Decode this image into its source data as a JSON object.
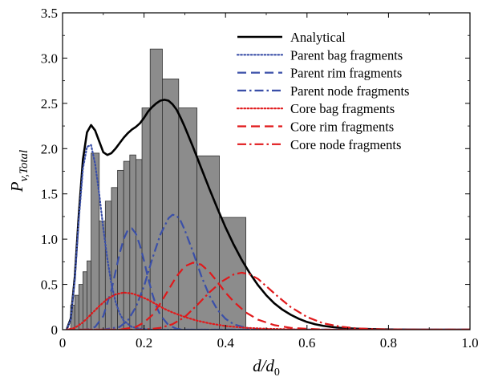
{
  "chart_data": {
    "type": "line",
    "xlabel": "d/d0",
    "ylabel": "Pv,Total",
    "xlim": [
      0,
      1.0
    ],
    "ylim": [
      0,
      3.5
    ],
    "x_ticks": [
      "0",
      "0.2",
      "0.4",
      "0.6",
      "0.8",
      "1.0"
    ],
    "y_ticks": [
      "0",
      "0.5",
      "1.0",
      "1.5",
      "2.0",
      "2.5",
      "3.0",
      "3.5"
    ],
    "legend_position": "top-right",
    "histogram": {
      "color": "#8c8c8c",
      "bins": [
        {
          "x0": 0.02,
          "x1": 0.03,
          "value": 0.27
        },
        {
          "x0": 0.03,
          "x1": 0.04,
          "value": 0.38
        },
        {
          "x0": 0.04,
          "x1": 0.05,
          "value": 0.5
        },
        {
          "x0": 0.05,
          "x1": 0.06,
          "value": 0.64
        },
        {
          "x0": 0.06,
          "x1": 0.07,
          "value": 0.76
        },
        {
          "x0": 0.07,
          "x1": 0.09,
          "value": 1.95
        },
        {
          "x0": 0.09,
          "x1": 0.105,
          "value": 1.2
        },
        {
          "x0": 0.105,
          "x1": 0.12,
          "value": 1.42
        },
        {
          "x0": 0.12,
          "x1": 0.135,
          "value": 1.57
        },
        {
          "x0": 0.135,
          "x1": 0.15,
          "value": 1.76
        },
        {
          "x0": 0.15,
          "x1": 0.165,
          "value": 1.86
        },
        {
          "x0": 0.165,
          "x1": 0.18,
          "value": 1.93
        },
        {
          "x0": 0.18,
          "x1": 0.195,
          "value": 1.88
        },
        {
          "x0": 0.195,
          "x1": 0.215,
          "value": 2.45
        },
        {
          "x0": 0.215,
          "x1": 0.245,
          "value": 3.1
        },
        {
          "x0": 0.245,
          "x1": 0.285,
          "value": 2.77
        },
        {
          "x0": 0.285,
          "x1": 0.33,
          "value": 2.45
        },
        {
          "x0": 0.33,
          "x1": 0.385,
          "value": 1.92
        },
        {
          "x0": 0.385,
          "x1": 0.45,
          "value": 1.24
        }
      ]
    },
    "series": [
      {
        "name": "Analytical",
        "color": "#000000",
        "style": "solid",
        "width": 2.6,
        "x": [
          0.01,
          0.02,
          0.03,
          0.04,
          0.05,
          0.06,
          0.07,
          0.08,
          0.09,
          0.1,
          0.11,
          0.12,
          0.13,
          0.14,
          0.15,
          0.16,
          0.17,
          0.18,
          0.19,
          0.2,
          0.21,
          0.22,
          0.23,
          0.24,
          0.25,
          0.26,
          0.27,
          0.28,
          0.29,
          0.3,
          0.32,
          0.34,
          0.36,
          0.38,
          0.4,
          0.42,
          0.44,
          0.46,
          0.48,
          0.5,
          0.52,
          0.54,
          0.56,
          0.58,
          0.6,
          0.62,
          0.64,
          0.66,
          0.68,
          0.7,
          0.72,
          0.74,
          0.76,
          0.78,
          0.8,
          0.85,
          0.9,
          0.95,
          1.0
        ],
        "y": [
          0.0,
          0.12,
          0.58,
          1.28,
          1.88,
          2.18,
          2.26,
          2.2,
          2.08,
          1.96,
          1.93,
          1.95,
          2.0,
          2.06,
          2.12,
          2.17,
          2.21,
          2.24,
          2.28,
          2.34,
          2.41,
          2.46,
          2.5,
          2.53,
          2.54,
          2.53,
          2.49,
          2.43,
          2.34,
          2.24,
          2.02,
          1.79,
          1.56,
          1.34,
          1.13,
          0.94,
          0.77,
          0.62,
          0.49,
          0.38,
          0.29,
          0.22,
          0.165,
          0.12,
          0.085,
          0.06,
          0.042,
          0.03,
          0.021,
          0.015,
          0.011,
          0.008,
          0.006,
          0.004,
          0.003,
          0.001,
          0.0,
          0.0,
          0.0
        ]
      },
      {
        "name": "Parent bag fragments",
        "color": "#3a4fa8",
        "style": "dotted",
        "width": 2.2,
        "x": [
          0.01,
          0.02,
          0.03,
          0.04,
          0.05,
          0.06,
          0.07,
          0.08,
          0.09,
          0.1,
          0.11,
          0.12,
          0.13,
          0.14,
          0.15,
          0.17,
          0.19,
          0.22,
          0.26,
          0.3,
          0.35,
          1.0
        ],
        "y": [
          0.0,
          0.11,
          0.55,
          1.22,
          1.78,
          2.02,
          2.04,
          1.83,
          1.5,
          1.12,
          0.78,
          0.5,
          0.31,
          0.18,
          0.1,
          0.03,
          0.01,
          0.0,
          0.0,
          0.0,
          0.0,
          0.0
        ]
      },
      {
        "name": "Parent rim fragments",
        "color": "#3a4fa8",
        "style": "dashed",
        "width": 2.2,
        "x": [
          0.01,
          0.06,
          0.08,
          0.1,
          0.12,
          0.13,
          0.14,
          0.15,
          0.16,
          0.17,
          0.18,
          0.19,
          0.2,
          0.21,
          0.22,
          0.23,
          0.24,
          0.26,
          0.28,
          0.3,
          1.0
        ],
        "y": [
          0.0,
          0.0,
          0.03,
          0.15,
          0.44,
          0.64,
          0.84,
          1.0,
          1.1,
          1.12,
          1.06,
          0.93,
          0.76,
          0.57,
          0.4,
          0.26,
          0.16,
          0.05,
          0.01,
          0.0,
          0.0
        ]
      },
      {
        "name": "Parent node fragments",
        "color": "#3a4fa8",
        "style": "dashdot",
        "width": 2.2,
        "x": [
          0.01,
          0.1,
          0.14,
          0.16,
          0.18,
          0.2,
          0.22,
          0.24,
          0.26,
          0.27,
          0.28,
          0.29,
          0.3,
          0.32,
          0.34,
          0.36,
          0.38,
          0.4,
          0.42,
          0.45,
          0.5,
          1.0
        ],
        "y": [
          0.0,
          0.0,
          0.03,
          0.1,
          0.25,
          0.48,
          0.78,
          1.05,
          1.23,
          1.27,
          1.26,
          1.2,
          1.1,
          0.86,
          0.6,
          0.38,
          0.22,
          0.12,
          0.06,
          0.02,
          0.0,
          0.0
        ]
      },
      {
        "name": "Core bag fragments",
        "color": "#e0191b",
        "style": "dotted",
        "width": 2.2,
        "x": [
          0.01,
          0.03,
          0.05,
          0.07,
          0.09,
          0.11,
          0.13,
          0.15,
          0.17,
          0.19,
          0.21,
          0.23,
          0.25,
          0.27,
          0.3,
          0.33,
          0.36,
          0.4,
          0.45,
          0.5,
          0.55,
          0.6,
          1.0
        ],
        "y": [
          0.0,
          0.02,
          0.08,
          0.17,
          0.26,
          0.34,
          0.39,
          0.41,
          0.4,
          0.37,
          0.33,
          0.28,
          0.23,
          0.19,
          0.14,
          0.1,
          0.07,
          0.04,
          0.02,
          0.01,
          0.005,
          0.0,
          0.0
        ]
      },
      {
        "name": "Core rim fragments",
        "color": "#e0191b",
        "style": "dashed",
        "width": 2.2,
        "x": [
          0.01,
          0.14,
          0.18,
          0.2,
          0.22,
          0.24,
          0.26,
          0.28,
          0.3,
          0.32,
          0.34,
          0.36,
          0.38,
          0.4,
          0.42,
          0.45,
          0.48,
          0.52,
          0.56,
          0.6,
          0.65,
          0.7,
          1.0
        ],
        "y": [
          0.0,
          0.0,
          0.03,
          0.08,
          0.16,
          0.29,
          0.44,
          0.59,
          0.7,
          0.74,
          0.72,
          0.64,
          0.53,
          0.41,
          0.31,
          0.19,
          0.11,
          0.05,
          0.02,
          0.01,
          0.0,
          0.0,
          0.0
        ]
      },
      {
        "name": "Core node fragments",
        "color": "#e0191b",
        "style": "dashdot",
        "width": 2.2,
        "x": [
          0.01,
          0.2,
          0.24,
          0.27,
          0.3,
          0.33,
          0.36,
          0.39,
          0.42,
          0.44,
          0.46,
          0.48,
          0.5,
          0.53,
          0.56,
          0.6,
          0.64,
          0.68,
          0.72,
          0.76,
          0.8,
          0.85,
          1.0
        ],
        "y": [
          0.0,
          0.0,
          0.02,
          0.06,
          0.14,
          0.27,
          0.41,
          0.53,
          0.61,
          0.63,
          0.61,
          0.56,
          0.48,
          0.36,
          0.25,
          0.14,
          0.07,
          0.035,
          0.015,
          0.007,
          0.003,
          0.0,
          0.0
        ]
      }
    ]
  }
}
